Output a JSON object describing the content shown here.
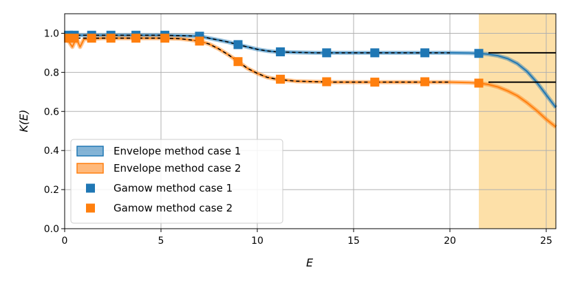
{
  "chart_data": {
    "type": "line",
    "xlabel": "E",
    "ylabel": "K(E)",
    "xlim": [
      0,
      25.5
    ],
    "ylim": [
      0,
      1.1
    ],
    "xticks": [
      "0",
      "5",
      "10",
      "15",
      "20",
      "25"
    ],
    "yticks": [
      "0.0",
      "0.2",
      "0.4",
      "0.6",
      "0.8",
      "1.0"
    ],
    "grid": true,
    "legend_position": "lower-left",
    "shaded_region": {
      "x_start": 21.5,
      "x_end": 25.5,
      "color": "#fde0a8"
    },
    "colors": {
      "case1": "#1f77b4",
      "case2": "#ff7f0e",
      "exact": "#000000"
    },
    "series": [
      {
        "name": "Envelope method case 1",
        "kind": "band",
        "x": [
          0,
          0.5,
          1,
          2,
          3,
          4,
          5,
          6,
          7,
          7.5,
          8,
          8.5,
          9,
          9.5,
          10,
          10.5,
          11,
          12,
          13,
          14,
          16,
          18,
          20,
          21,
          21.5,
          22,
          22.5,
          23,
          23.5,
          24,
          24.5,
          25,
          25.5
        ],
        "values": [
          0.99,
          0.99,
          0.99,
          0.99,
          0.99,
          0.99,
          0.99,
          0.988,
          0.985,
          0.975,
          0.965,
          0.955,
          0.942,
          0.93,
          0.918,
          0.91,
          0.905,
          0.902,
          0.9,
          0.9,
          0.9,
          0.9,
          0.9,
          0.899,
          0.897,
          0.893,
          0.885,
          0.87,
          0.845,
          0.805,
          0.75,
          0.685,
          0.62
        ]
      },
      {
        "name": "Envelope method case 2",
        "kind": "band",
        "x": [
          0,
          0.2,
          0.4,
          0.6,
          0.8,
          1,
          2,
          3,
          4,
          5,
          6,
          7,
          7.5,
          8,
          8.5,
          9,
          9.5,
          10,
          10.5,
          11,
          12,
          13,
          14,
          16,
          18,
          20,
          21,
          21.5,
          22,
          22.5,
          23,
          23.5,
          24,
          24.5,
          25,
          25.5
        ],
        "values": [
          0.97,
          0.96,
          0.93,
          0.975,
          0.93,
          0.97,
          0.975,
          0.975,
          0.975,
          0.975,
          0.972,
          0.96,
          0.945,
          0.92,
          0.89,
          0.855,
          0.82,
          0.795,
          0.775,
          0.765,
          0.755,
          0.752,
          0.75,
          0.75,
          0.75,
          0.75,
          0.748,
          0.745,
          0.738,
          0.725,
          0.705,
          0.68,
          0.645,
          0.605,
          0.56,
          0.52
        ]
      },
      {
        "name": "Exact case 1",
        "kind": "reference",
        "x": [
          0,
          1,
          2,
          3,
          4,
          5,
          6,
          7,
          7.5,
          8,
          8.5,
          9,
          9.5,
          10,
          10.5,
          11,
          12,
          13,
          14,
          16,
          18,
          20,
          22,
          24,
          25.5
        ],
        "values": [
          0.99,
          0.99,
          0.99,
          0.99,
          0.99,
          0.99,
          0.988,
          0.985,
          0.975,
          0.965,
          0.955,
          0.942,
          0.93,
          0.918,
          0.91,
          0.905,
          0.902,
          0.9,
          0.9,
          0.9,
          0.9,
          0.9,
          0.9,
          0.9,
          0.9
        ]
      },
      {
        "name": "Exact case 2",
        "kind": "reference",
        "x": [
          0,
          1,
          2,
          3,
          4,
          5,
          6,
          7,
          7.5,
          8,
          8.5,
          9,
          9.5,
          10,
          10.5,
          11,
          12,
          13,
          14,
          16,
          18,
          20,
          22,
          24,
          25.5
        ],
        "values": [
          0.975,
          0.975,
          0.975,
          0.975,
          0.975,
          0.975,
          0.972,
          0.96,
          0.945,
          0.92,
          0.89,
          0.855,
          0.82,
          0.795,
          0.775,
          0.765,
          0.755,
          0.752,
          0.75,
          0.75,
          0.75,
          0.75,
          0.75,
          0.75,
          0.75
        ]
      },
      {
        "name": "Gamow method case 1",
        "kind": "markers",
        "x": [
          0.2,
          0.5,
          1.4,
          2.4,
          3.7,
          5.2,
          7.0,
          9.0,
          11.2,
          13.6,
          16.1,
          18.7,
          21.5
        ],
        "values": [
          0.99,
          0.99,
          0.99,
          0.99,
          0.99,
          0.99,
          0.985,
          0.942,
          0.905,
          0.9,
          0.9,
          0.9,
          0.897
        ]
      },
      {
        "name": "Gamow method case 2",
        "kind": "markers",
        "x": [
          0.2,
          0.5,
          1.4,
          2.4,
          3.7,
          5.2,
          7.0,
          9.0,
          11.2,
          13.6,
          16.1,
          18.7,
          21.5
        ],
        "values": [
          0.975,
          0.975,
          0.975,
          0.975,
          0.975,
          0.975,
          0.96,
          0.855,
          0.765,
          0.752,
          0.75,
          0.752,
          0.745
        ]
      }
    ],
    "legend": [
      "Envelope method case 1",
      "Envelope method case 2",
      "Gamow method case 1",
      "Gamow method case 2"
    ]
  }
}
